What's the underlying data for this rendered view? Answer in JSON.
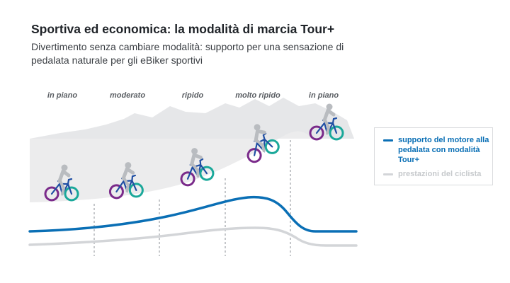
{
  "header": {
    "title": "Sportiva ed economica: la modalità di marcia Tour+",
    "subtitle": "Divertimento senza cambiare modalità: supporto per una sensazione di pedalata naturale per gli eBiker sportivi"
  },
  "terrain": {
    "labels": [
      "in piano",
      "moderato",
      "ripido",
      "molto ripido",
      "in piano"
    ]
  },
  "legend": {
    "motor_label": "supporto del motore alla pedalata con modalità Tour+",
    "cyclist_label": "prestazioni del ciclista"
  },
  "colors": {
    "motor": "#0a6fb5",
    "cyclist": "#d3d5d8",
    "hill": "#ececed",
    "mountains": "#e3e4e6",
    "divider": "#9ea2a6",
    "rider": "#b9bcc0",
    "bike_frame": "#1f4ea3",
    "wheel_front": "#1aa89a",
    "wheel_rear": "#7a2a8a"
  }
}
